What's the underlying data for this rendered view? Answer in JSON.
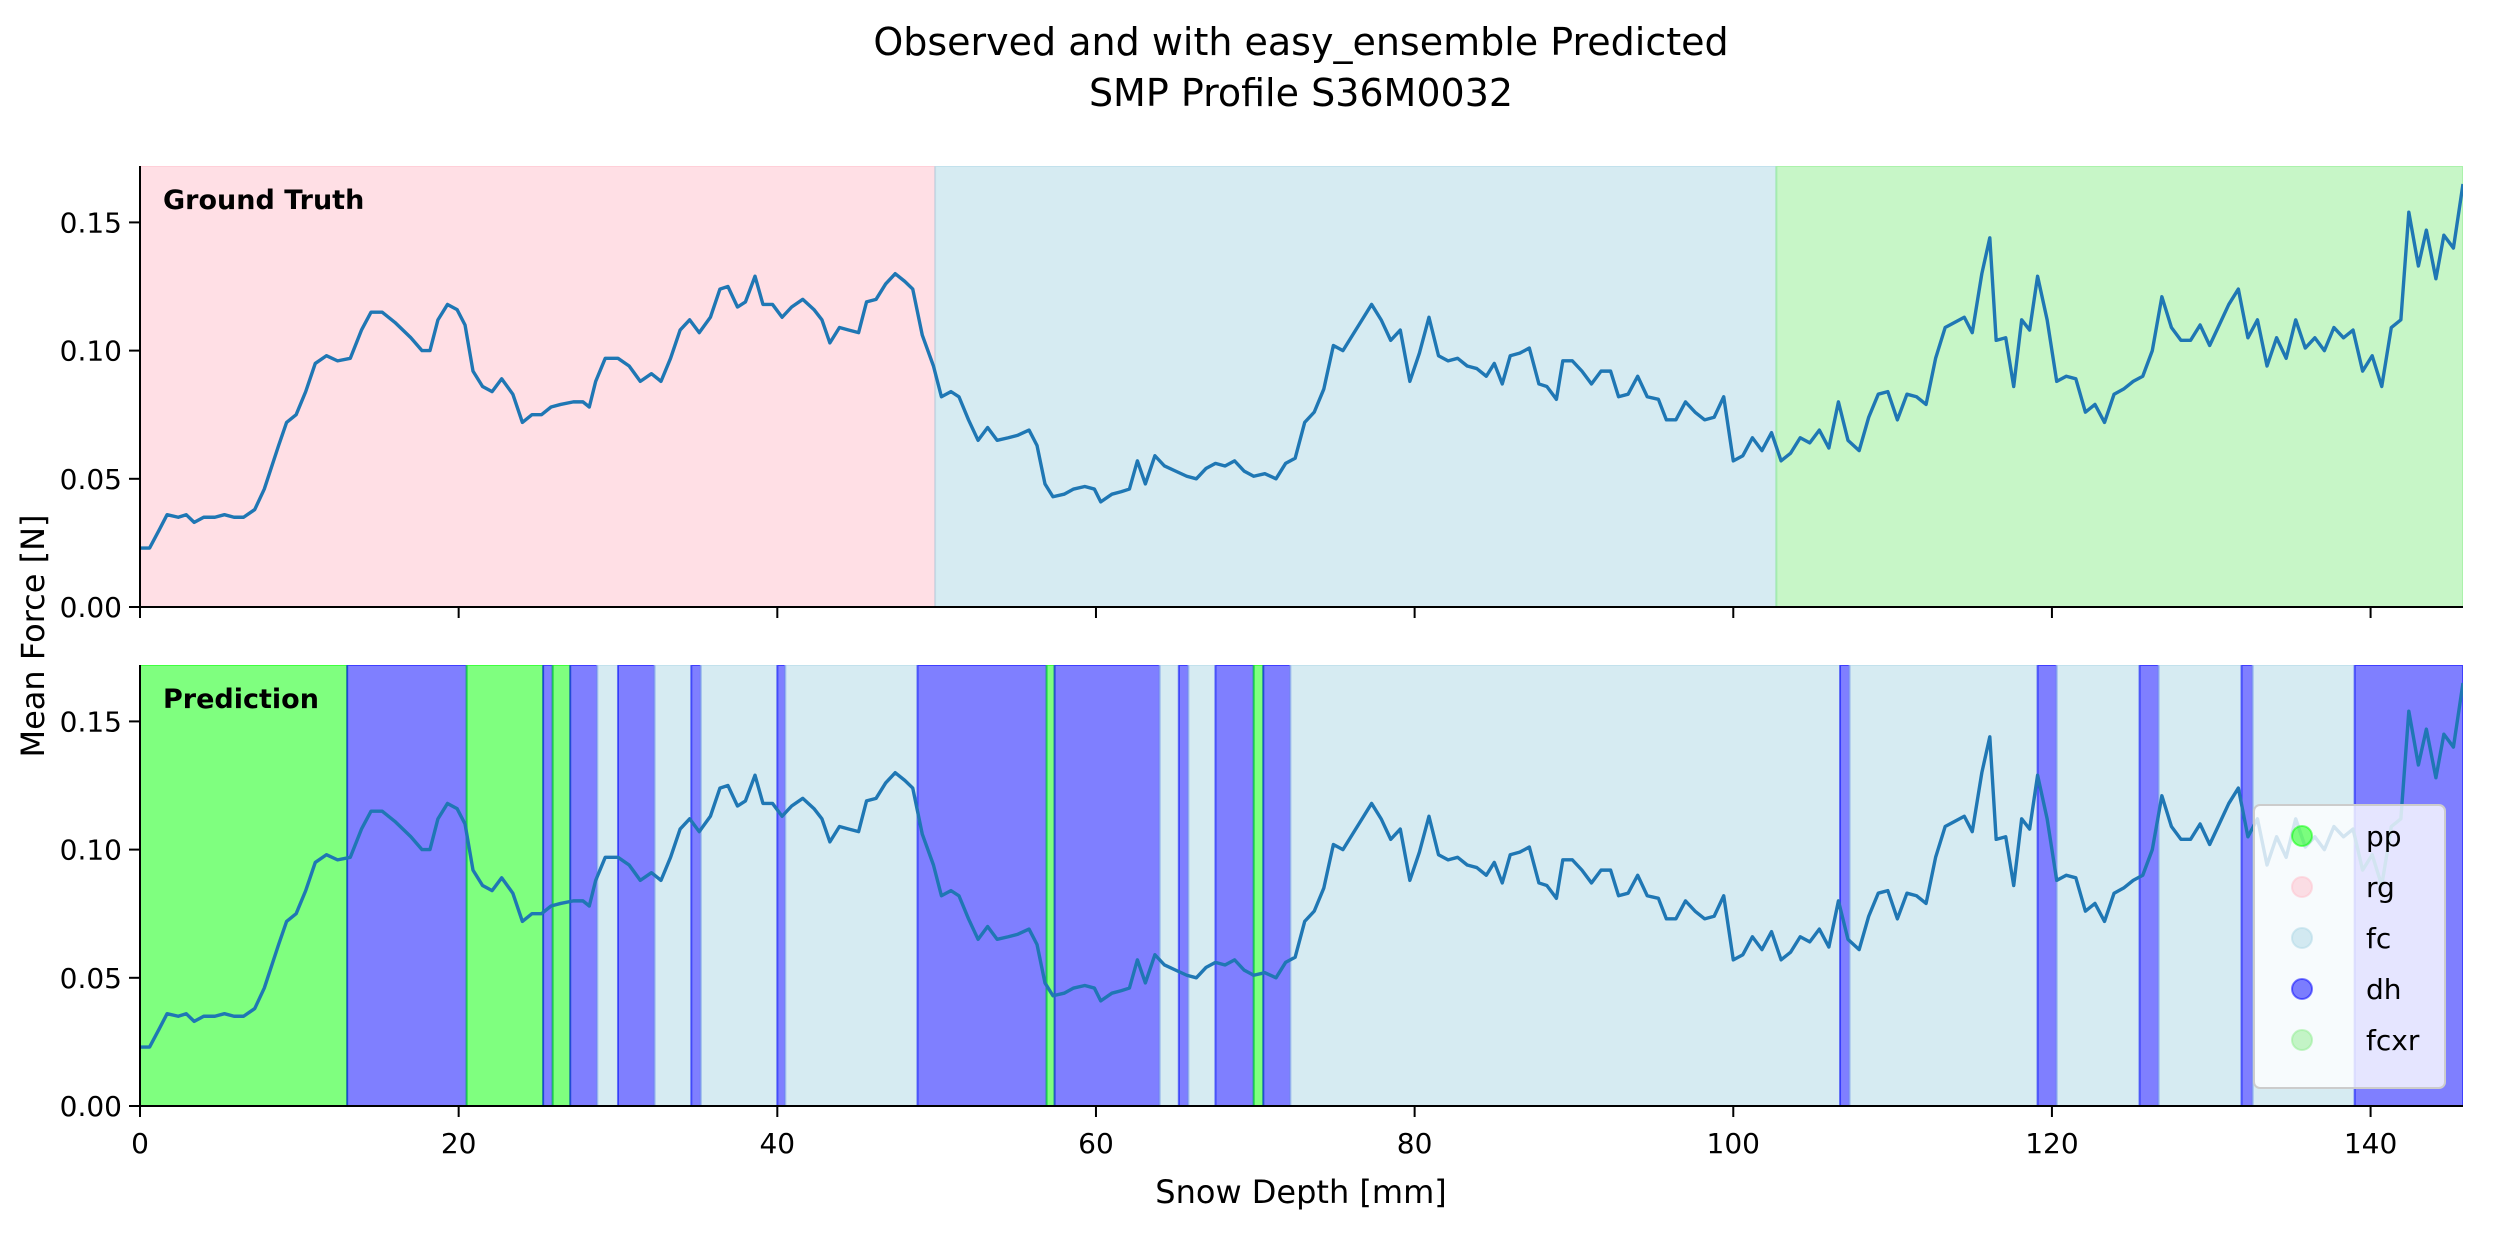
{
  "chart_data": {
    "type": "line",
    "title": [
      "Observed and with easy_ensemble Predicted",
      "SMP Profile S36M0032"
    ],
    "xlabel": "Snow Depth [mm]",
    "ylabel": "Mean Force [N]",
    "color": "#1f77b4",
    "xlim": [
      0,
      145.8
    ],
    "xticks": [
      0,
      20,
      40,
      60,
      80,
      100,
      120,
      140
    ],
    "ylim": [
      0,
      0.172
    ],
    "yticks": [
      {
        "value": 0,
        "label": "0.00"
      },
      {
        "value": 0.05,
        "label": "0.05"
      },
      {
        "value": 0.1,
        "label": "0.10"
      },
      {
        "value": 0.15,
        "label": "0.15"
      }
    ],
    "x": [
      0,
      0.6,
      1.2,
      1.7,
      2.4,
      2.9,
      3.4,
      4.0,
      4.7,
      5.3,
      5.9,
      6.5,
      7.2,
      7.8,
      8.7,
      9.2,
      9.8,
      10.4,
      11.0,
      11.7,
      12.4,
      13.2,
      13.9,
      14.5,
      15.2,
      16.0,
      17.0,
      17.7,
      18.2,
      18.7,
      19.3,
      19.9,
      20.4,
      20.9,
      21.5,
      22.1,
      22.7,
      23.4,
      24.0,
      24.6,
      25.2,
      25.8,
      26.4,
      27.2,
      27.8,
      28.2,
      28.6,
      29.2,
      30.0,
      30.7,
      31.4,
      32.1,
      32.7,
      33.3,
      33.9,
      34.5,
      35.1,
      35.8,
      36.4,
      36.9,
      37.5,
      38.0,
      38.6,
      39.1,
      39.7,
      40.3,
      40.9,
      41.6,
      42.3,
      42.8,
      43.3,
      43.9,
      44.5,
      45.1,
      45.6,
      46.2,
      46.8,
      47.4,
      48.0,
      48.5,
      49.1,
      49.8,
      50.3,
      50.9,
      51.4,
      52.0,
      52.6,
      53.2,
      53.8,
      54.5,
      55.1,
      55.8,
      56.3,
      56.8,
      57.3,
      58.0,
      58.6,
      59.3,
      59.9,
      60.3,
      61.0,
      61.6,
      62.1,
      62.6,
      63.1,
      63.7,
      64.3,
      65.0,
      65.7,
      66.3,
      66.9,
      67.5,
      68.1,
      68.7,
      69.3,
      69.9,
      70.6,
      71.3,
      71.9,
      72.5,
      73.1,
      73.7,
      74.3,
      74.9,
      75.5,
      76.1,
      76.7,
      77.3,
      77.9,
      78.5,
      79.1,
      79.7,
      80.3,
      80.9,
      81.5,
      82.1,
      82.7,
      83.3,
      83.9,
      84.5,
      85.0,
      85.5,
      86.0,
      86.6,
      87.2,
      87.8,
      88.3,
      88.9,
      89.3,
      89.9,
      90.5,
      91.1,
      91.7,
      92.3,
      92.8,
      93.4,
      94.0,
      94.6,
      95.3,
      95.8,
      96.4,
      97.0,
      97.6,
      98.2,
      98.8,
      99.4,
      100.0,
      100.6,
      101.2,
      101.8,
      102.4,
      103.0,
      103.6,
      104.2,
      104.8,
      105.4,
      106.0,
      106.6,
      107.2,
      107.9,
      108.5,
      109.1,
      109.7,
      110.3,
      110.9,
      111.5,
      112.1,
      112.7,
      113.3,
      113.9,
      114.5,
      115.0,
      115.6,
      116.1,
      116.5,
      117.1,
      117.6,
      118.1,
      118.6,
      119.1,
      119.7,
      120.3,
      120.9,
      121.5,
      122.1,
      122.7,
      123.3,
      123.9,
      124.5,
      125.1,
      125.7,
      126.3,
      126.9,
      127.5,
      128.1,
      128.7,
      129.3,
      129.9,
      130.5,
      131.1,
      131.7,
      132.3,
      132.9,
      133.5,
      134.1,
      134.7,
      135.3,
      135.9,
      136.5,
      137.1,
      137.7,
      138.3,
      138.9,
      139.5,
      140.1,
      140.7,
      141.3,
      141.9,
      142.4,
      143.0,
      143.5,
      144.1,
      144.6,
      145.2,
      145.8
    ],
    "values": [
      0.023,
      0.023,
      0.03,
      0.036,
      0.035,
      0.036,
      0.033,
      0.035,
      0.035,
      0.036,
      0.035,
      0.035,
      0.038,
      0.046,
      0.063,
      0.072,
      0.075,
      0.084,
      0.095,
      0.098,
      0.096,
      0.097,
      0.108,
      0.115,
      0.115,
      0.111,
      0.105,
      0.1,
      0.1,
      0.112,
      0.118,
      0.116,
      0.11,
      0.092,
      0.086,
      0.084,
      0.089,
      0.083,
      0.072,
      0.075,
      0.075,
      0.078,
      0.079,
      0.08,
      0.08,
      0.078,
      0.088,
      0.097,
      0.097,
      0.094,
      0.088,
      0.091,
      0.088,
      0.097,
      0.108,
      0.112,
      0.107,
      0.113,
      0.124,
      0.125,
      0.117,
      0.119,
      0.129,
      0.118,
      0.118,
      0.113,
      0.117,
      0.12,
      0.116,
      0.112,
      0.103,
      0.109,
      0.108,
      0.107,
      0.119,
      0.12,
      0.126,
      0.13,
      0.127,
      0.124,
      0.106,
      0.094,
      0.082,
      0.084,
      0.082,
      0.073,
      0.065,
      0.07,
      0.065,
      0.066,
      0.067,
      0.069,
      0.063,
      0.048,
      0.043,
      0.044,
      0.046,
      0.047,
      0.046,
      0.041,
      0.044,
      0.045,
      0.046,
      0.057,
      0.048,
      0.059,
      0.055,
      0.053,
      0.051,
      0.05,
      0.054,
      0.056,
      0.055,
      0.057,
      0.053,
      0.051,
      0.052,
      0.05,
      0.056,
      0.058,
      0.072,
      0.076,
      0.085,
      0.102,
      0.1,
      0.106,
      0.112,
      0.118,
      0.112,
      0.104,
      0.108,
      0.088,
      0.099,
      0.113,
      0.098,
      0.096,
      0.097,
      0.094,
      0.093,
      0.09,
      0.095,
      0.087,
      0.098,
      0.099,
      0.101,
      0.087,
      0.086,
      0.081,
      0.096,
      0.096,
      0.092,
      0.087,
      0.092,
      0.092,
      0.082,
      0.083,
      0.09,
      0.082,
      0.081,
      0.073,
      0.073,
      0.08,
      0.076,
      0.073,
      0.074,
      0.082,
      0.057,
      0.059,
      0.066,
      0.061,
      0.068,
      0.057,
      0.06,
      0.066,
      0.064,
      0.069,
      0.062,
      0.08,
      0.065,
      0.061,
      0.074,
      0.083,
      0.084,
      0.073,
      0.083,
      0.082,
      0.079,
      0.097,
      0.109,
      0.111,
      0.113,
      0.107,
      0.13,
      0.144,
      0.104,
      0.105,
      0.086,
      0.112,
      0.108,
      0.129,
      0.112,
      0.088,
      0.09,
      0.089,
      0.076,
      0.079,
      0.072,
      0.083,
      0.085,
      0.088,
      0.09,
      0.1,
      0.121,
      0.109,
      0.104,
      0.104,
      0.11,
      0.102,
      0.11,
      0.118,
      0.124,
      0.105,
      0.112,
      0.094,
      0.105,
      0.097,
      0.112,
      0.101,
      0.105,
      0.1,
      0.109,
      0.105,
      0.108,
      0.092,
      0.098,
      0.086,
      0.109,
      0.112,
      0.154,
      0.133,
      0.147,
      0.128,
      0.145,
      0.14,
      0.165
    ],
    "span_alpha": 0.5,
    "panels": [
      {
        "label": "Ground Truth",
        "spans": [
          {
            "class": "rg",
            "start": 0,
            "end": 49.9
          },
          {
            "class": "fc",
            "start": 49.9,
            "end": 102.7
          },
          {
            "class": "fcxr",
            "start": 102.7,
            "end": 145.8
          }
        ]
      },
      {
        "label": "Prediction",
        "spans": [
          {
            "class": "pp",
            "start": 0,
            "end": 13.0
          },
          {
            "class": "dh",
            "start": 13.0,
            "end": 20.5
          },
          {
            "class": "pp",
            "start": 20.5,
            "end": 25.3
          },
          {
            "class": "dh",
            "start": 25.3,
            "end": 25.9
          },
          {
            "class": "pp",
            "start": 25.9,
            "end": 27.0
          },
          {
            "class": "dh",
            "start": 27.0,
            "end": 28.7
          },
          {
            "class": "fc",
            "start": 28.7,
            "end": 30.0
          },
          {
            "class": "dh",
            "start": 30.0,
            "end": 32.3
          },
          {
            "class": "fc",
            "start": 32.3,
            "end": 34.6
          },
          {
            "class": "dh",
            "start": 34.6,
            "end": 35.2
          },
          {
            "class": "fc",
            "start": 35.2,
            "end": 40.0
          },
          {
            "class": "dh",
            "start": 40.0,
            "end": 40.5
          },
          {
            "class": "fc",
            "start": 40.5,
            "end": 48.8
          },
          {
            "class": "dh",
            "start": 48.8,
            "end": 56.9
          },
          {
            "class": "pp",
            "start": 56.9,
            "end": 57.4
          },
          {
            "class": "dh",
            "start": 57.4,
            "end": 64.0
          },
          {
            "class": "fc",
            "start": 64.0,
            "end": 65.2
          },
          {
            "class": "dh",
            "start": 65.2,
            "end": 65.8
          },
          {
            "class": "fc",
            "start": 65.8,
            "end": 67.5
          },
          {
            "class": "dh",
            "start": 67.5,
            "end": 69.9
          },
          {
            "class": "pp",
            "start": 69.9,
            "end": 70.5
          },
          {
            "class": "dh",
            "start": 70.5,
            "end": 72.2
          },
          {
            "class": "fc",
            "start": 72.2,
            "end": 106.7
          },
          {
            "class": "dh",
            "start": 106.7,
            "end": 107.3
          },
          {
            "class": "fc",
            "start": 107.3,
            "end": 119.1
          },
          {
            "class": "dh",
            "start": 119.1,
            "end": 120.3
          },
          {
            "class": "fc",
            "start": 120.3,
            "end": 125.5
          },
          {
            "class": "dh",
            "start": 125.5,
            "end": 126.7
          },
          {
            "class": "fc",
            "start": 126.7,
            "end": 131.9
          },
          {
            "class": "dh",
            "start": 131.9,
            "end": 132.6
          },
          {
            "class": "fc",
            "start": 132.6,
            "end": 139.0
          },
          {
            "class": "dh",
            "start": 139.0,
            "end": 145.8
          }
        ]
      }
    ],
    "legend": {
      "loc": "lower right",
      "panel": 1,
      "entries": [
        {
          "name": "pp",
          "color": "#00ff00"
        },
        {
          "name": "rg",
          "color": "#ffc0cb"
        },
        {
          "name": "fc",
          "color": "#add8e6"
        },
        {
          "name": "dh",
          "color": "#0000ff"
        },
        {
          "name": "fcxr",
          "color": "#90ee90"
        }
      ]
    }
  }
}
